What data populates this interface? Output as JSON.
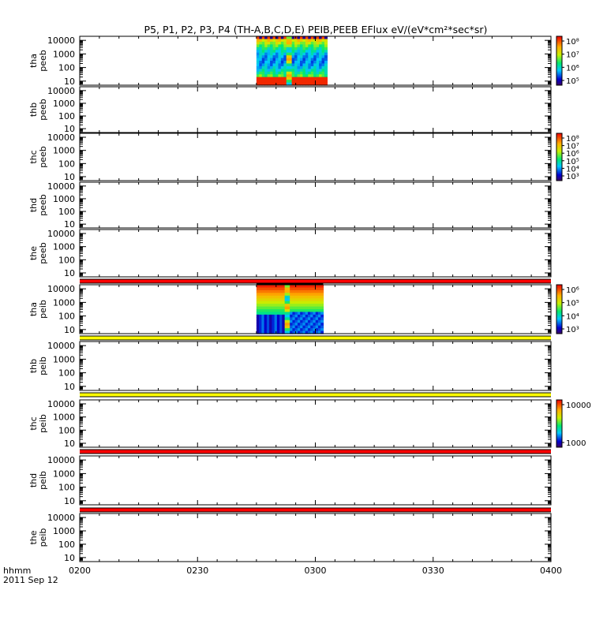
{
  "chart_data": {
    "type": "heatmap",
    "title": "P5, P1, P2, P3, P4 (TH-A,B,C,D,E) PEIB,PEEB EFlux eV/(eV*cm²*sec*sr)",
    "time_axis": {
      "start": "0200",
      "end": "0400",
      "tick_labels": [
        "0200",
        "0230",
        "0300",
        "0330",
        "0400"
      ],
      "corner_label": "hhmm",
      "date_label": "2011 Sep 12"
    },
    "panels": [
      {
        "probe": "tha",
        "product": "peeb",
        "ylog": true,
        "yrange": [
          5,
          20000
        ],
        "yticks": [
          "10",
          "100",
          "1000",
          "10000"
        ],
        "data_span": [
          "0245",
          "0303"
        ],
        "colorbar": {
          "labels": [
            "10⁸",
            "10⁷",
            "10⁶",
            "10⁵"
          ],
          "range_exp": [
            4.5,
            8.3
          ]
        }
      },
      {
        "probe": "thb",
        "product": "peeb",
        "ylog": true,
        "yrange": [
          5,
          20000
        ],
        "yticks": [
          "10",
          "100",
          "1000",
          "10000"
        ],
        "data_span": null,
        "colorbar": null
      },
      {
        "probe": "thc",
        "product": "peeb",
        "ylog": true,
        "yrange": [
          5,
          20000
        ],
        "yticks": [
          "10",
          "100",
          "1000",
          "10000"
        ],
        "data_span": null,
        "colorbar": {
          "labels": [
            "10⁸",
            "10⁷",
            "10⁶",
            "10⁵",
            "10⁴",
            "10³"
          ],
          "range_exp": [
            3,
            8
          ]
        }
      },
      {
        "probe": "thd",
        "product": "peeb",
        "ylog": true,
        "yrange": [
          5,
          20000
        ],
        "yticks": [
          "10",
          "100",
          "1000",
          "10000"
        ],
        "data_span": null,
        "colorbar": null
      },
      {
        "probe": "the",
        "product": "peeb",
        "ylog": true,
        "yrange": [
          5,
          20000
        ],
        "yticks": [
          "10",
          "100",
          "1000",
          "10000"
        ],
        "data_span": null,
        "colorbar": null
      },
      {
        "probe": "tha",
        "product": "peib",
        "ylog": true,
        "yrange": [
          5,
          20000
        ],
        "yticks": [
          "10",
          "100",
          "1000",
          "10000"
        ],
        "data_span": [
          "0245",
          "0302"
        ],
        "colorbar": {
          "labels": [
            "10⁶",
            "10⁵",
            "10⁴",
            "10³"
          ],
          "range_exp": [
            2.8,
            6.5
          ]
        }
      },
      {
        "probe": "thb",
        "product": "peib",
        "ylog": true,
        "yrange": [
          5,
          20000
        ],
        "yticks": [
          "10",
          "100",
          "1000",
          "10000"
        ],
        "data_span": null,
        "colorbar": null
      },
      {
        "probe": "thc",
        "product": "peib",
        "ylog": true,
        "yrange": [
          5,
          20000
        ],
        "yticks": [
          "10",
          "100",
          "1000",
          "10000"
        ],
        "data_span": null,
        "colorbar": {
          "labels": [
            "10000",
            "1000"
          ],
          "range_exp": [
            2.7,
            4.5
          ]
        }
      },
      {
        "probe": "thd",
        "product": "peib",
        "ylog": true,
        "yrange": [
          5,
          20000
        ],
        "yticks": [
          "10",
          "100",
          "1000",
          "10000"
        ],
        "data_span": null,
        "colorbar": null
      },
      {
        "probe": "the",
        "product": "peib",
        "ylog": true,
        "yrange": [
          5,
          20000
        ],
        "yticks": [
          "10",
          "100",
          "1000",
          "10000"
        ],
        "data_span": null,
        "colorbar": null
      }
    ],
    "status_bars": [
      {
        "color": "#ff0000"
      },
      {
        "color": "#ffff00"
      },
      {
        "color": "#ffff00"
      },
      {
        "color": "#ff0000"
      },
      {
        "color": "#ff0000"
      }
    ]
  }
}
